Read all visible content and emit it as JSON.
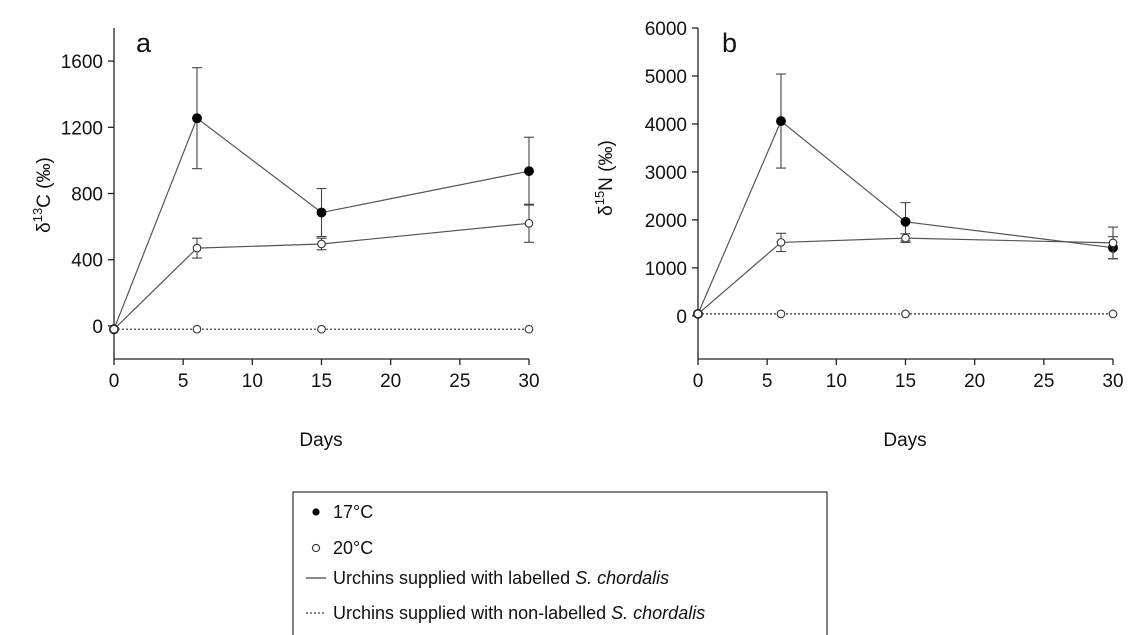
{
  "chart_data": [
    {
      "type": "line",
      "panel_label": "a",
      "xlabel": "Days",
      "ylabel": {
        "prefix": "δ",
        "superscript": "13",
        "main": "C (‰)"
      },
      "x_ticks": [
        0,
        5,
        10,
        15,
        20,
        25,
        30
      ],
      "y_ticks": [
        0,
        400,
        800,
        1200,
        1600
      ],
      "xlim": [
        0,
        30
      ],
      "ylim": [
        -200,
        1800
      ],
      "series": [
        {
          "key": "17C_labelled",
          "marker": "filled",
          "line": "solid",
          "x": [
            0,
            6,
            15,
            30
          ],
          "y": [
            -20,
            1255,
            685,
            935
          ],
          "err": [
            0,
            305,
            145,
            205
          ]
        },
        {
          "key": "20C_labelled",
          "marker": "open",
          "line": "solid",
          "x": [
            0,
            6,
            15,
            30
          ],
          "y": [
            -20,
            470,
            495,
            620
          ],
          "err": [
            0,
            60,
            35,
            115
          ]
        },
        {
          "key": "20C_nonlabelled",
          "marker": "open",
          "line": "dotted",
          "x": [
            0,
            6,
            15,
            30
          ],
          "y": [
            -20,
            -20,
            -20,
            -20
          ],
          "err": [
            0,
            0,
            0,
            0
          ]
        }
      ]
    },
    {
      "type": "line",
      "panel_label": "b",
      "xlabel": "Days",
      "ylabel": {
        "prefix": "δ",
        "superscript": "15",
        "main": "N (‰)"
      },
      "x_ticks": [
        0,
        5,
        10,
        15,
        20,
        25,
        30
      ],
      "y_ticks": [
        0,
        1000,
        2000,
        3000,
        4000,
        5000,
        6000
      ],
      "xlim": [
        0,
        30
      ],
      "ylim": [
        -900,
        6000
      ],
      "series": [
        {
          "key": "17C_labelled",
          "marker": "filled",
          "line": "solid",
          "x": [
            0,
            6,
            15,
            30
          ],
          "y": [
            40,
            4060,
            1960,
            1420
          ],
          "err": [
            0,
            980,
            400,
            230
          ]
        },
        {
          "key": "20C_labelled",
          "marker": "open",
          "line": "solid",
          "x": [
            0,
            6,
            15,
            30
          ],
          "y": [
            40,
            1530,
            1620,
            1520
          ],
          "err": [
            0,
            190,
            90,
            330
          ]
        },
        {
          "key": "20C_nonlabelled",
          "marker": "open",
          "line": "dotted",
          "x": [
            0,
            6,
            15,
            30
          ],
          "y": [
            40,
            40,
            40,
            40
          ],
          "err": [
            0,
            0,
            0,
            0
          ]
        }
      ]
    }
  ],
  "legend": {
    "items": [
      {
        "symbol": "filled-dot",
        "label": "17°C",
        "italic": ""
      },
      {
        "symbol": "open-dot",
        "label": "20°C",
        "italic": ""
      },
      {
        "symbol": "solid-line",
        "label": "Urchins supplied with labelled ",
        "italic": "S. chordalis"
      },
      {
        "symbol": "dotted-line",
        "label": "Urchins supplied with non-labelled ",
        "italic": "S. chordalis"
      }
    ]
  }
}
